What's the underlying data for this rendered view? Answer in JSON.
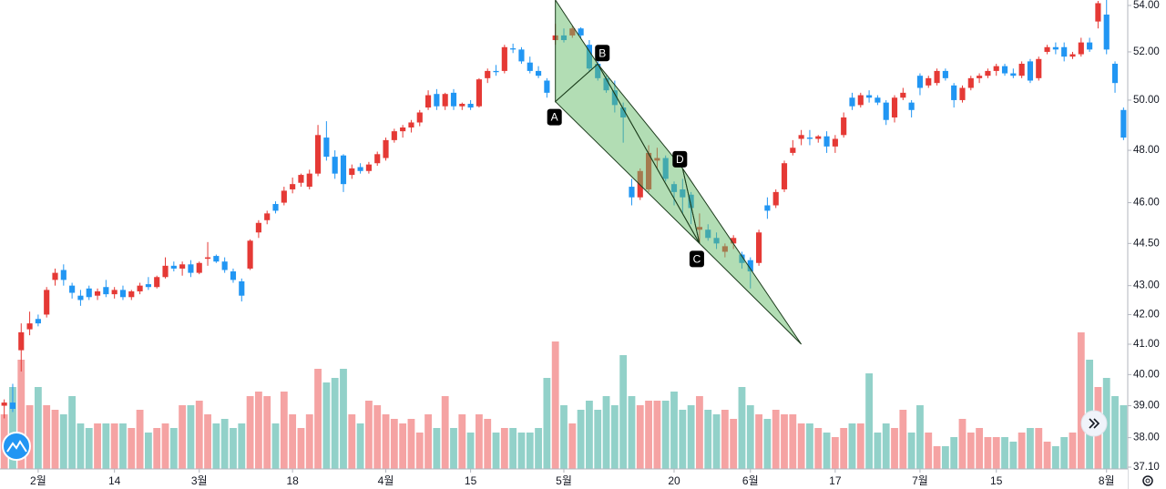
{
  "chart_data": {
    "type": "candlestick",
    "categories": [
      null,
      null,
      null,
      null,
      "2월",
      null,
      null,
      null,
      null,
      null,
      null,
      null,
      null,
      "14",
      null,
      null,
      null,
      null,
      null,
      null,
      null,
      null,
      null,
      "3월",
      null,
      null,
      null,
      null,
      null,
      null,
      null,
      null,
      null,
      null,
      "18",
      null,
      null,
      null,
      null,
      null,
      null,
      null,
      null,
      null,
      null,
      "4월",
      null,
      null,
      null,
      null,
      null,
      null,
      null,
      null,
      null,
      "15",
      null,
      null,
      null,
      null,
      null,
      null,
      null,
      null,
      null,
      null,
      "5월",
      null,
      null,
      null,
      null,
      null,
      null,
      null,
      null,
      null,
      null,
      null,
      null,
      "20",
      null,
      null,
      null,
      null,
      null,
      null,
      null,
      null,
      "6월",
      null,
      null,
      null,
      null,
      null,
      null,
      null,
      null,
      null,
      "17",
      null,
      null,
      null,
      null,
      null,
      null,
      null,
      null,
      null,
      "7월",
      null,
      null,
      null,
      null,
      null,
      null,
      null,
      null,
      "15",
      null,
      null,
      null,
      null,
      null,
      null,
      null,
      null,
      null,
      null,
      null,
      null,
      "8월",
      null,
      null
    ],
    "open": [
      39.0,
      39.1,
      40.8,
      41.5,
      41.85,
      42.0,
      43.2,
      43.55,
      43.0,
      42.65,
      42.9,
      42.65,
      42.95,
      42.7,
      42.85,
      42.6,
      42.8,
      43.05,
      42.95,
      43.3,
      43.7,
      43.6,
      43.75,
      43.45,
      43.95,
      44.05,
      43.85,
      43.5,
      43.15,
      43.6,
      44.9,
      45.35,
      45.95,
      46.0,
      46.5,
      46.75,
      46.6,
      47.1,
      48.5,
      47.75,
      47.8,
      47.05,
      47.35,
      47.2,
      47.5,
      47.7,
      48.4,
      48.75,
      48.9,
      49.1,
      49.7,
      50.25,
      49.75,
      50.3,
      49.75,
      49.85,
      49.75,
      50.9,
      51.2,
      51.2,
      52.15,
      52.1,
      51.55,
      51.2,
      50.8,
      52.5,
      52.7,
      52.7,
      53.0,
      52.3,
      51.5,
      50.9,
      50.4,
      49.7,
      46.6,
      46.2,
      46.5,
      47.6,
      47.7,
      46.7,
      46.5,
      46.3,
      45.0,
      45.0,
      44.7,
      44.2,
      44.5,
      44.1,
      43.9,
      43.8,
      45.9,
      45.9,
      46.5,
      47.9,
      48.45,
      48.5,
      48.45,
      48.55,
      48.15,
      48.6,
      50.1,
      49.8,
      50.2,
      50.1,
      49.9,
      49.3,
      50.1,
      49.9,
      51.0,
      50.6,
      50.7,
      51.2,
      50.6,
      50.0,
      50.5,
      50.9,
      51.0,
      51.2,
      51.4,
      51.1,
      51.0,
      51.6,
      50.9,
      52.0,
      52.2,
      52.2,
      51.8,
      51.9,
      52.4,
      53.3,
      53.6,
      51.5,
      49.6
    ],
    "high": [
      39.2,
      39.7,
      41.7,
      42.1,
      42.0,
      42.95,
      43.6,
      43.75,
      43.1,
      42.85,
      43.0,
      42.9,
      43.2,
      42.95,
      43.0,
      42.85,
      43.1,
      43.3,
      43.35,
      44.0,
      43.85,
      43.85,
      43.9,
      43.85,
      44.55,
      44.1,
      44.0,
      43.6,
      43.25,
      44.65,
      45.35,
      45.7,
      46.05,
      46.6,
      46.95,
      47.1,
      47.25,
      49.0,
      49.15,
      48.0,
      47.85,
      47.45,
      47.5,
      47.55,
      47.95,
      48.5,
      48.85,
      49.0,
      49.2,
      49.6,
      50.4,
      50.45,
      50.3,
      50.45,
      49.9,
      50.0,
      50.9,
      51.3,
      51.45,
      52.3,
      52.35,
      52.2,
      51.8,
      51.4,
      50.9,
      53.2,
      53.0,
      53.1,
      53.05,
      52.5,
      51.9,
      51.0,
      50.8,
      49.9,
      46.9,
      47.3,
      48.2,
      48.1,
      47.8,
      46.8,
      46.9,
      46.4,
      45.6,
      45.2,
      44.9,
      44.5,
      44.8,
      44.2,
      44.0,
      45.0,
      46.2,
      46.5,
      47.6,
      48.4,
      48.8,
      48.8,
      48.6,
      48.75,
      48.6,
      49.5,
      50.3,
      50.3,
      50.4,
      50.2,
      50.0,
      50.2,
      50.5,
      50.0,
      51.1,
      51.0,
      51.3,
      51.3,
      50.7,
      50.6,
      51.0,
      51.1,
      51.3,
      51.5,
      51.5,
      51.3,
      51.6,
      51.7,
      51.8,
      52.3,
      52.4,
      52.4,
      52.0,
      52.6,
      52.6,
      54.2,
      54.3,
      51.6,
      49.7
    ],
    "low": [
      38.6,
      38.8,
      40.1,
      41.3,
      41.6,
      41.9,
      43.0,
      43.0,
      42.55,
      42.3,
      42.5,
      42.5,
      42.6,
      42.55,
      42.5,
      42.5,
      42.7,
      42.85,
      42.9,
      43.25,
      43.5,
      43.35,
      43.3,
      43.4,
      43.7,
      43.8,
      43.45,
      43.1,
      42.45,
      43.55,
      44.7,
      45.2,
      45.6,
      45.9,
      46.35,
      46.6,
      46.5,
      47.0,
      47.6,
      46.9,
      46.4,
      46.9,
      47.1,
      47.1,
      47.4,
      47.6,
      48.3,
      48.5,
      48.7,
      48.95,
      49.6,
      49.6,
      49.6,
      49.6,
      49.6,
      49.6,
      49.7,
      50.7,
      51.0,
      51.1,
      51.95,
      51.5,
      51.1,
      50.9,
      50.1,
      52.3,
      52.4,
      52.6,
      52.6,
      51.2,
      50.8,
      50.3,
      49.5,
      48.3,
      45.9,
      46.1,
      46.4,
      47.3,
      46.8,
      45.9,
      45.6,
      45.2,
      44.5,
      44.6,
      44.3,
      44.0,
      44.3,
      43.6,
      42.9,
      43.7,
      45.4,
      45.8,
      46.4,
      47.8,
      48.2,
      48.2,
      48.3,
      47.9,
      47.9,
      48.5,
      49.6,
      49.7,
      49.9,
      49.8,
      49.0,
      49.1,
      50.0,
      49.3,
      50.2,
      50.5,
      50.6,
      50.8,
      49.7,
      49.9,
      50.4,
      50.7,
      50.9,
      51.0,
      51.0,
      50.9,
      50.9,
      50.7,
      50.8,
      51.9,
      51.9,
      51.6,
      51.7,
      51.8,
      52.0,
      53.0,
      51.9,
      50.3,
      48.4
    ],
    "close": [
      39.1,
      38.9,
      41.4,
      41.7,
      41.7,
      42.85,
      43.45,
      43.2,
      42.75,
      42.5,
      42.6,
      42.8,
      42.7,
      42.85,
      42.6,
      42.8,
      43.0,
      42.95,
      43.3,
      43.7,
      43.6,
      43.75,
      43.45,
      43.8,
      44.0,
      43.85,
      43.55,
      43.2,
      42.65,
      44.6,
      45.25,
      45.6,
      45.7,
      46.45,
      46.7,
      47.05,
      47.1,
      48.6,
      47.75,
      47.1,
      46.7,
      47.3,
      47.2,
      47.45,
      47.85,
      48.4,
      48.75,
      48.9,
      49.1,
      49.5,
      50.2,
      49.75,
      50.25,
      49.75,
      49.85,
      49.7,
      50.85,
      51.2,
      51.15,
      52.2,
      52.1,
      51.6,
      51.2,
      51.0,
      50.3,
      52.7,
      52.5,
      53.0,
      52.7,
      51.3,
      50.9,
      50.4,
      49.8,
      49.3,
      46.2,
      47.2,
      47.9,
      47.7,
      46.9,
      46.4,
      46.2,
      45.8,
      45.1,
      44.7,
      44.5,
      44.4,
      44.7,
      43.8,
      43.5,
      44.9,
      45.7,
      46.4,
      47.5,
      48.1,
      48.6,
      48.45,
      48.55,
      48.15,
      48.45,
      49.3,
      49.75,
      50.2,
      50.1,
      49.9,
      49.2,
      50.1,
      50.3,
      49.6,
      50.5,
      50.9,
      51.2,
      50.9,
      50.0,
      50.5,
      50.9,
      51.0,
      51.2,
      51.4,
      51.1,
      51.0,
      51.5,
      50.8,
      51.7,
      52.2,
      52.1,
      51.8,
      51.9,
      52.4,
      52.1,
      54.1,
      52.1,
      50.7,
      48.5
    ],
    "volume": [
      60,
      90,
      120,
      70,
      90,
      70,
      65,
      60,
      80,
      50,
      45,
      50,
      50,
      50,
      50,
      45,
      65,
      40,
      45,
      50,
      45,
      70,
      70,
      75,
      60,
      50,
      55,
      45,
      50,
      80,
      85,
      80,
      50,
      85,
      60,
      45,
      60,
      110,
      95,
      100,
      110,
      60,
      50,
      75,
      70,
      60,
      55,
      50,
      55,
      40,
      60,
      45,
      80,
      45,
      60,
      40,
      60,
      55,
      40,
      45,
      45,
      40,
      40,
      45,
      100,
      140,
      70,
      50,
      65,
      75,
      65,
      80,
      70,
      125,
      80,
      70,
      75,
      75,
      75,
      85,
      65,
      70,
      80,
      65,
      60,
      65,
      55,
      90,
      70,
      60,
      55,
      65,
      60,
      60,
      50,
      50,
      45,
      40,
      35,
      45,
      50,
      50,
      105,
      40,
      50,
      45,
      65,
      40,
      70,
      40,
      25,
      25,
      35,
      55,
      40,
      45,
      35,
      35,
      35,
      30,
      40,
      45,
      45,
      30,
      25,
      35,
      40,
      150,
      120,
      90,
      100,
      80,
      70
    ],
    "vlim": [
      0,
      160
    ],
    "up_color": "#e53935",
    "down_color": "#2196f3",
    "volume_up_color": "#f5a3a3",
    "volume_down_color": "#92d1c9",
    "ylim": [
      37.1,
      54.24
    ],
    "log_scale": true,
    "yticks": [
      {
        "value": 54,
        "label": "54.00"
      },
      {
        "value": 52,
        "label": "52.00"
      },
      {
        "value": 50,
        "label": "50.00"
      },
      {
        "value": 48,
        "label": "48.00"
      },
      {
        "value": 46,
        "label": "46.00"
      },
      {
        "value": 44.5,
        "label": "44.50"
      },
      {
        "value": 43,
        "label": "43.00"
      },
      {
        "value": 42,
        "label": "42.00"
      },
      {
        "value": 41,
        "label": "41.00"
      },
      {
        "value": 40,
        "label": "40.00"
      },
      {
        "value": 39,
        "label": "39.00"
      },
      {
        "value": 38,
        "label": "38.00"
      },
      {
        "value": 37.1,
        "label": "37.10"
      }
    ],
    "pattern": {
      "color": "#66bb6a",
      "points": [
        {
          "x": 65,
          "y": 54.24
        },
        {
          "x": 65,
          "y": 49.94,
          "label": "A"
        },
        {
          "x": 70,
          "y": 51.49,
          "label": "B"
        },
        {
          "x": 82,
          "y": 44.5,
          "label": "C"
        },
        {
          "x": 80,
          "y": 47.3,
          "label": "D"
        },
        {
          "x": 94,
          "y": 41.0
        }
      ]
    }
  }
}
